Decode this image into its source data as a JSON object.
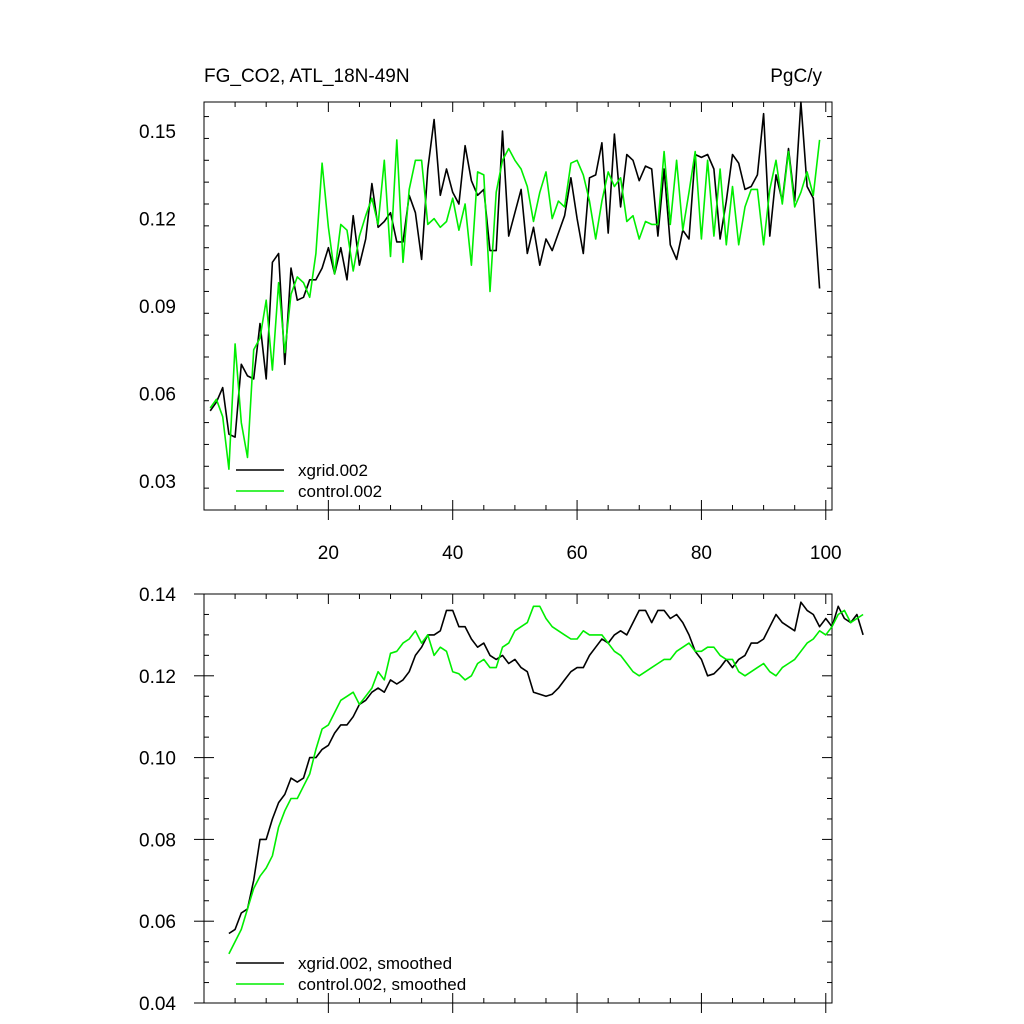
{
  "title": "FG_CO2, ATL_18N-49N",
  "units": "PgC/y",
  "colors": {
    "series_a": "#000000",
    "series_b": "#00ee00"
  },
  "chart_data": [
    {
      "type": "line",
      "xlim": [
        0,
        101
      ],
      "ylim": [
        0.02,
        0.16
      ],
      "xticks": [
        20,
        40,
        60,
        80,
        100
      ],
      "yticks": [
        0.03,
        0.06,
        0.09,
        0.12,
        0.15
      ],
      "ytick_labels": [
        "0.03",
        "0.06",
        "0.09",
        "0.12",
        "0.15"
      ],
      "xtick_labels": [
        "20",
        "40",
        "60",
        "80",
        "100"
      ],
      "legend": "bottom-left",
      "series": [
        {
          "name": "xgrid.002",
          "x_start": 1,
          "values": [
            0.054,
            0.057,
            0.062,
            0.046,
            0.045,
            0.07,
            0.066,
            0.065,
            0.084,
            0.065,
            0.105,
            0.108,
            0.07,
            0.103,
            0.092,
            0.093,
            0.099,
            0.099,
            0.103,
            0.11,
            0.101,
            0.11,
            0.099,
            0.121,
            0.104,
            0.113,
            0.132,
            0.117,
            0.119,
            0.122,
            0.112,
            0.112,
            0.128,
            0.122,
            0.106,
            0.137,
            0.154,
            0.128,
            0.137,
            0.129,
            0.125,
            0.145,
            0.133,
            0.128,
            0.13,
            0.109,
            0.109,
            0.15,
            0.114,
            0.122,
            0.13,
            0.108,
            0.117,
            0.104,
            0.113,
            0.109,
            0.115,
            0.121,
            0.134,
            0.12,
            0.108,
            0.134,
            0.135,
            0.146,
            0.115,
            0.149,
            0.124,
            0.142,
            0.14,
            0.133,
            0.138,
            0.137,
            0.114,
            0.137,
            0.111,
            0.106,
            0.116,
            0.113,
            0.142,
            0.141,
            0.142,
            0.137,
            0.113,
            0.126,
            0.142,
            0.139,
            0.13,
            0.131,
            0.135,
            0.156,
            0.114,
            0.135,
            0.126,
            0.144,
            0.126,
            0.16,
            0.131,
            0.127,
            0.096
          ]
        },
        {
          "name": "control.002",
          "x_start": 1,
          "values": [
            0.055,
            0.058,
            0.052,
            0.034,
            0.077,
            0.05,
            0.038,
            0.075,
            0.079,
            0.092,
            0.068,
            0.098,
            0.074,
            0.094,
            0.1,
            0.098,
            0.093,
            0.108,
            0.139,
            0.117,
            0.101,
            0.118,
            0.116,
            0.102,
            0.114,
            0.121,
            0.127,
            0.118,
            0.14,
            0.107,
            0.147,
            0.105,
            0.13,
            0.14,
            0.14,
            0.118,
            0.12,
            0.117,
            0.119,
            0.127,
            0.116,
            0.125,
            0.104,
            0.136,
            0.135,
            0.095,
            0.129,
            0.14,
            0.144,
            0.14,
            0.137,
            0.131,
            0.119,
            0.129,
            0.136,
            0.12,
            0.126,
            0.124,
            0.139,
            0.14,
            0.135,
            0.126,
            0.113,
            0.126,
            0.136,
            0.131,
            0.134,
            0.119,
            0.121,
            0.113,
            0.119,
            0.118,
            0.118,
            0.143,
            0.118,
            0.14,
            0.116,
            0.129,
            0.143,
            0.113,
            0.14,
            0.114,
            0.137,
            0.111,
            0.131,
            0.111,
            0.124,
            0.13,
            0.13,
            0.111,
            0.13,
            0.14,
            0.125,
            0.143,
            0.124,
            0.129,
            0.136,
            0.128,
            0.147
          ]
        }
      ]
    },
    {
      "type": "line",
      "xlim": [
        0,
        101
      ],
      "ylim": [
        0.04,
        0.14
      ],
      "xticks": [
        20,
        40,
        60,
        80,
        100
      ],
      "yticks": [
        0.04,
        0.06,
        0.08,
        0.1,
        0.12,
        0.14
      ],
      "ytick_labels": [
        "0.04",
        "0.06",
        "0.08",
        "0.10",
        "0.12",
        "0.14"
      ],
      "legend": "bottom-left",
      "series": [
        {
          "name": "xgrid.002, smoothed",
          "x_start": 4,
          "values": [
            0.057,
            0.058,
            0.062,
            0.063,
            0.07,
            0.08,
            0.08,
            0.085,
            0.089,
            0.091,
            0.095,
            0.094,
            0.095,
            0.1,
            0.1,
            0.102,
            0.103,
            0.106,
            0.108,
            0.108,
            0.11,
            0.113,
            0.114,
            0.116,
            0.117,
            0.116,
            0.119,
            0.118,
            0.119,
            0.121,
            0.125,
            0.127,
            0.13,
            0.13,
            0.131,
            0.136,
            0.136,
            0.132,
            0.132,
            0.129,
            0.127,
            0.128,
            0.125,
            0.124,
            0.125,
            0.123,
            0.124,
            0.122,
            0.121,
            0.116,
            0.1155,
            0.115,
            0.1155,
            0.117,
            0.119,
            0.121,
            0.122,
            0.122,
            0.125,
            0.127,
            0.129,
            0.128,
            0.13,
            0.131,
            0.13,
            0.133,
            0.136,
            0.136,
            0.133,
            0.136,
            0.136,
            0.134,
            0.135,
            0.133,
            0.13,
            0.126,
            0.124,
            0.12,
            0.1205,
            0.122,
            0.124,
            0.122,
            0.124,
            0.125,
            0.128,
            0.128,
            0.129,
            0.132,
            0.135,
            0.133,
            0.132,
            0.131,
            0.138,
            0.136,
            0.135,
            0.132,
            0.134,
            0.132,
            0.137,
            0.134,
            0.133,
            0.135,
            0.13
          ]
        },
        {
          "name": "control.002, smoothed",
          "x_start": 4,
          "values": [
            0.052,
            0.055,
            0.058,
            0.063,
            0.068,
            0.071,
            0.073,
            0.076,
            0.083,
            0.087,
            0.09,
            0.09,
            0.093,
            0.096,
            0.102,
            0.107,
            0.108,
            0.111,
            0.114,
            0.115,
            0.116,
            0.113,
            0.115,
            0.117,
            0.121,
            0.119,
            0.1255,
            0.126,
            0.128,
            0.129,
            0.131,
            0.128,
            0.13,
            0.125,
            0.127,
            0.126,
            0.121,
            0.1205,
            0.119,
            0.12,
            0.123,
            0.124,
            0.122,
            0.122,
            0.127,
            0.128,
            0.131,
            0.132,
            0.133,
            0.137,
            0.137,
            0.134,
            0.132,
            0.131,
            0.13,
            0.129,
            0.129,
            0.131,
            0.13,
            0.13,
            0.13,
            0.128,
            0.126,
            0.125,
            0.123,
            0.121,
            0.12,
            0.121,
            0.122,
            0.123,
            0.124,
            0.124,
            0.126,
            0.127,
            0.128,
            0.126,
            0.126,
            0.127,
            0.127,
            0.125,
            0.124,
            0.124,
            0.121,
            0.12,
            0.121,
            0.122,
            0.123,
            0.121,
            0.12,
            0.122,
            0.123,
            0.124,
            0.126,
            0.128,
            0.129,
            0.131,
            0.13,
            0.132,
            0.135,
            0.136,
            0.133,
            0.134,
            0.135
          ]
        }
      ]
    }
  ]
}
